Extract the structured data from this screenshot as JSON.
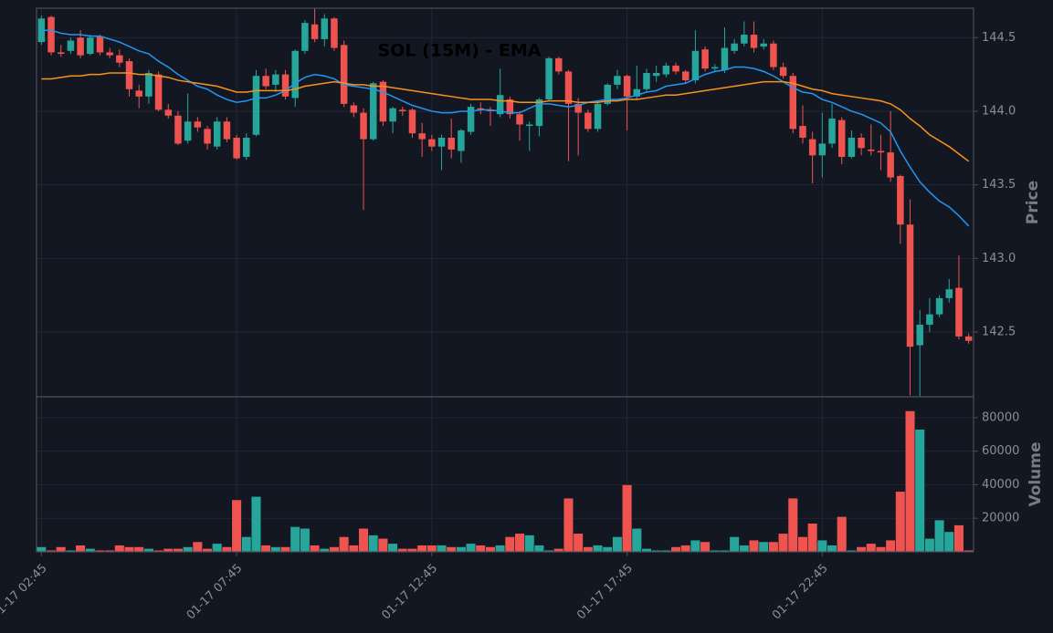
{
  "chart_data": {
    "type": "candlestick",
    "title": "SOL (15M) - EMA",
    "ylabel": "Price",
    "volume_label": "Volume",
    "categories": [
      "01-17 02:45",
      null,
      null,
      null,
      null,
      null,
      null,
      null,
      null,
      null,
      null,
      null,
      null,
      null,
      null,
      null,
      null,
      null,
      null,
      null,
      "01-17 07:45",
      null,
      null,
      null,
      null,
      null,
      null,
      null,
      null,
      null,
      null,
      null,
      null,
      null,
      null,
      null,
      null,
      null,
      null,
      null,
      "01-17 12:45",
      null,
      null,
      null,
      null,
      null,
      null,
      null,
      null,
      null,
      null,
      null,
      null,
      null,
      null,
      null,
      null,
      null,
      null,
      null,
      "01-17 17:45",
      null,
      null,
      null,
      null,
      null,
      null,
      null,
      null,
      null,
      null,
      null,
      null,
      null,
      null,
      null,
      null,
      null,
      null,
      null,
      "01-17 22:45",
      null,
      null,
      null,
      null,
      null,
      null,
      null,
      null,
      null,
      null,
      null,
      null,
      null,
      null,
      null
    ],
    "open": [
      144.47,
      144.64,
      144.4,
      144.41,
      144.5,
      144.39,
      144.51,
      144.4,
      144.38,
      144.34,
      144.14,
      144.1,
      144.25,
      144.01,
      143.97,
      143.8,
      143.93,
      143.88,
      143.76,
      143.93,
      143.82,
      143.69,
      143.84,
      144.24,
      144.18,
      144.25,
      144.09,
      144.41,
      144.59,
      144.49,
      144.63,
      144.45,
      144.04,
      143.99,
      143.81,
      144.2,
      143.93,
      144.01,
      144.01,
      143.85,
      143.81,
      143.76,
      143.82,
      143.73,
      143.86,
      144.02,
      144.01,
      143.98,
      144.08,
      143.98,
      143.9,
      143.9,
      144.08,
      144.36,
      144.27,
      144.05,
      143.99,
      143.88,
      144.05,
      144.18,
      144.24,
      144.1,
      144.15,
      144.24,
      144.25,
      144.31,
      144.27,
      144.21,
      144.42,
      144.29,
      144.28,
      144.41,
      144.46,
      144.52,
      144.44,
      144.46,
      144.3,
      144.24,
      143.9,
      143.81,
      143.7,
      143.78,
      143.94,
      143.69,
      143.82,
      143.74,
      143.73,
      143.72,
      143.56,
      143.23,
      142.41,
      142.55,
      142.62,
      142.73,
      142.8,
      142.47
    ],
    "high": [
      144.65,
      144.65,
      144.45,
      144.5,
      144.55,
      144.52,
      144.52,
      144.43,
      144.42,
      144.36,
      144.18,
      144.28,
      144.27,
      144.05,
      144.0,
      144.12,
      143.96,
      143.9,
      143.96,
      143.96,
      143.84,
      143.85,
      144.28,
      144.29,
      144.28,
      144.28,
      144.42,
      144.62,
      144.7,
      144.66,
      144.64,
      144.48,
      144.06,
      144.02,
      144.2,
      144.21,
      144.03,
      144.03,
      144.02,
      143.92,
      143.84,
      143.84,
      143.95,
      143.88,
      144.05,
      144.06,
      144.03,
      144.29,
      144.1,
      144.0,
      143.93,
      144.09,
      144.37,
      144.37,
      144.28,
      144.09,
      144.01,
      144.07,
      144.19,
      144.28,
      144.25,
      144.31,
      144.29,
      144.31,
      144.33,
      144.33,
      144.28,
      144.55,
      144.44,
      144.32,
      144.57,
      144.49,
      144.61,
      144.61,
      144.49,
      144.48,
      144.33,
      144.26,
      144.04,
      143.86,
      143.99,
      144.05,
      143.96,
      143.87,
      143.85,
      143.91,
      143.84,
      144.0,
      143.57,
      143.4,
      142.65,
      142.73,
      142.75,
      142.86,
      143.02,
      142.49
    ],
    "low": [
      144.45,
      144.38,
      144.37,
      144.39,
      144.36,
      144.38,
      144.38,
      144.36,
      144.3,
      144.1,
      144.02,
      144.05,
      144.0,
      143.95,
      143.77,
      143.78,
      143.86,
      143.74,
      143.74,
      143.79,
      143.67,
      143.67,
      143.83,
      144.15,
      144.13,
      144.08,
      144.03,
      144.39,
      144.47,
      144.44,
      144.41,
      144.03,
      143.96,
      143.33,
      143.8,
      143.9,
      143.85,
      143.97,
      143.82,
      143.69,
      143.73,
      143.6,
      143.68,
      143.65,
      143.84,
      143.98,
      143.9,
      143.96,
      143.95,
      143.8,
      143.73,
      143.83,
      144.07,
      144.25,
      143.66,
      143.7,
      143.86,
      143.86,
      144.04,
      144.15,
      143.87,
      144.08,
      144.13,
      144.2,
      144.23,
      144.25,
      144.19,
      144.19,
      144.27,
      144.27,
      144.26,
      144.39,
      144.44,
      144.4,
      144.42,
      144.28,
      144.22,
      143.85,
      143.78,
      143.51,
      143.55,
      143.75,
      143.64,
      143.68,
      143.7,
      143.7,
      143.6,
      143.52,
      143.1,
      142.07,
      142.06,
      142.5,
      142.6,
      142.7,
      142.45,
      142.42
    ],
    "close": [
      144.63,
      144.4,
      144.39,
      144.48,
      144.38,
      144.5,
      144.4,
      144.38,
      144.33,
      144.15,
      144.1,
      144.26,
      144.01,
      143.97,
      143.78,
      143.93,
      143.89,
      143.78,
      143.93,
      143.81,
      143.68,
      143.82,
      144.24,
      144.17,
      144.25,
      144.1,
      144.41,
      144.6,
      144.49,
      144.63,
      144.43,
      144.05,
      143.99,
      143.81,
      144.19,
      143.93,
      144.02,
      144.0,
      143.85,
      143.81,
      143.76,
      143.82,
      143.74,
      143.87,
      144.03,
      144.01,
      144.0,
      144.11,
      143.98,
      143.91,
      143.91,
      144.08,
      144.36,
      144.27,
      144.05,
      143.99,
      143.88,
      144.05,
      144.18,
      144.24,
      144.1,
      144.15,
      144.26,
      144.26,
      144.31,
      144.27,
      144.21,
      144.41,
      144.29,
      144.3,
      144.43,
      144.46,
      144.52,
      144.43,
      144.46,
      144.3,
      144.24,
      143.88,
      143.82,
      143.7,
      143.78,
      143.95,
      143.69,
      143.82,
      143.75,
      143.73,
      143.72,
      143.55,
      143.23,
      142.4,
      142.55,
      142.62,
      142.73,
      142.79,
      142.47,
      142.44
    ],
    "volume": [
      3000,
      1000,
      3000,
      1000,
      4000,
      2000,
      1000,
      1000,
      4000,
      3000,
      3000,
      2000,
      1000,
      2000,
      2000,
      3000,
      6000,
      2000,
      5000,
      3000,
      31000,
      9000,
      33000,
      4000,
      3000,
      3000,
      15000,
      14000,
      4000,
      2000,
      3000,
      9000,
      4000,
      14000,
      10000,
      8000,
      5000,
      2000,
      2000,
      4000,
      4000,
      4000,
      3000,
      3000,
      5000,
      4000,
      3000,
      4000,
      9000,
      11000,
      10000,
      4000,
      1000,
      2000,
      32000,
      11000,
      3000,
      4000,
      3000,
      9000,
      40000,
      14000,
      2000,
      1000,
      1000,
      3000,
      4000,
      7000,
      6000,
      1000,
      1000,
      9000,
      4000,
      7000,
      6000,
      6000,
      11000,
      32000,
      9000,
      17000,
      7000,
      4000,
      21000,
      1000,
      3000,
      5000,
      3000,
      7000,
      36000,
      84000,
      73000,
      8000,
      19000,
      12000,
      16000,
      1000
    ],
    "up_color": "#26a69a",
    "down_color": "#ef5350",
    "series": [
      {
        "color": "#2196f3",
        "values": [
          144.55,
          144.55,
          144.53,
          144.52,
          144.52,
          144.51,
          144.51,
          144.49,
          144.47,
          144.44,
          144.41,
          144.39,
          144.34,
          144.3,
          144.25,
          144.21,
          144.17,
          144.15,
          144.11,
          144.08,
          144.06,
          144.07,
          144.09,
          144.09,
          144.11,
          144.14,
          144.19,
          144.23,
          144.25,
          144.24,
          144.22,
          144.18,
          144.17,
          144.16,
          144.15,
          144.13,
          144.1,
          144.07,
          144.04,
          144.02,
          144.0,
          143.99,
          143.99,
          144.0,
          144.0,
          144.01,
          144.01,
          144.0,
          143.99,
          143.99,
          144.02,
          144.05,
          144.05,
          144.04,
          144.03,
          144.04,
          144.06,
          144.07,
          144.08,
          144.08,
          144.09,
          144.11,
          144.13,
          144.14,
          144.17,
          144.18,
          144.19,
          144.22,
          144.25,
          144.27,
          144.28,
          144.3,
          144.3,
          144.29,
          144.27,
          144.24,
          144.2,
          144.16,
          144.13,
          144.12,
          144.08,
          144.06,
          144.03,
          144.0,
          143.98,
          143.95,
          143.92,
          143.86,
          143.73,
          143.62,
          143.52,
          143.45,
          143.39,
          143.35,
          143.29,
          143.22
        ]
      },
      {
        "color": "#f7931a",
        "values": [
          144.22,
          144.22,
          144.23,
          144.24,
          144.24,
          144.25,
          144.25,
          144.26,
          144.26,
          144.26,
          144.25,
          144.25,
          144.24,
          144.23,
          144.21,
          144.2,
          144.19,
          144.18,
          144.17,
          144.15,
          144.13,
          144.13,
          144.14,
          144.14,
          144.14,
          144.14,
          144.15,
          144.17,
          144.18,
          144.19,
          144.2,
          144.19,
          144.18,
          144.18,
          144.17,
          144.17,
          144.16,
          144.15,
          144.14,
          144.13,
          144.12,
          144.11,
          144.1,
          144.09,
          144.08,
          144.08,
          144.08,
          144.07,
          144.07,
          144.06,
          144.06,
          144.06,
          144.07,
          144.07,
          144.07,
          144.06,
          144.06,
          144.06,
          144.07,
          144.07,
          144.08,
          144.08,
          144.09,
          144.1,
          144.11,
          144.11,
          144.12,
          144.13,
          144.14,
          144.15,
          144.16,
          144.17,
          144.18,
          144.19,
          144.2,
          144.2,
          144.2,
          144.19,
          144.17,
          144.15,
          144.14,
          144.12,
          144.11,
          144.1,
          144.09,
          144.08,
          144.07,
          144.05,
          144.01,
          143.95,
          143.9,
          143.84,
          143.8,
          143.76,
          143.71,
          143.66
        ]
      }
    ],
    "ylim": [
      142.06,
      144.7
    ],
    "yticks": [
      142.5,
      {
        "value": 143,
        "label": "143.0"
      },
      143.5,
      {
        "value": 144,
        "label": "144.0"
      },
      144.5
    ],
    "volume_ylim": [
      0,
      92400
    ],
    "volume_yticks": [
      20000,
      40000,
      60000,
      80000
    ],
    "grid": true
  }
}
